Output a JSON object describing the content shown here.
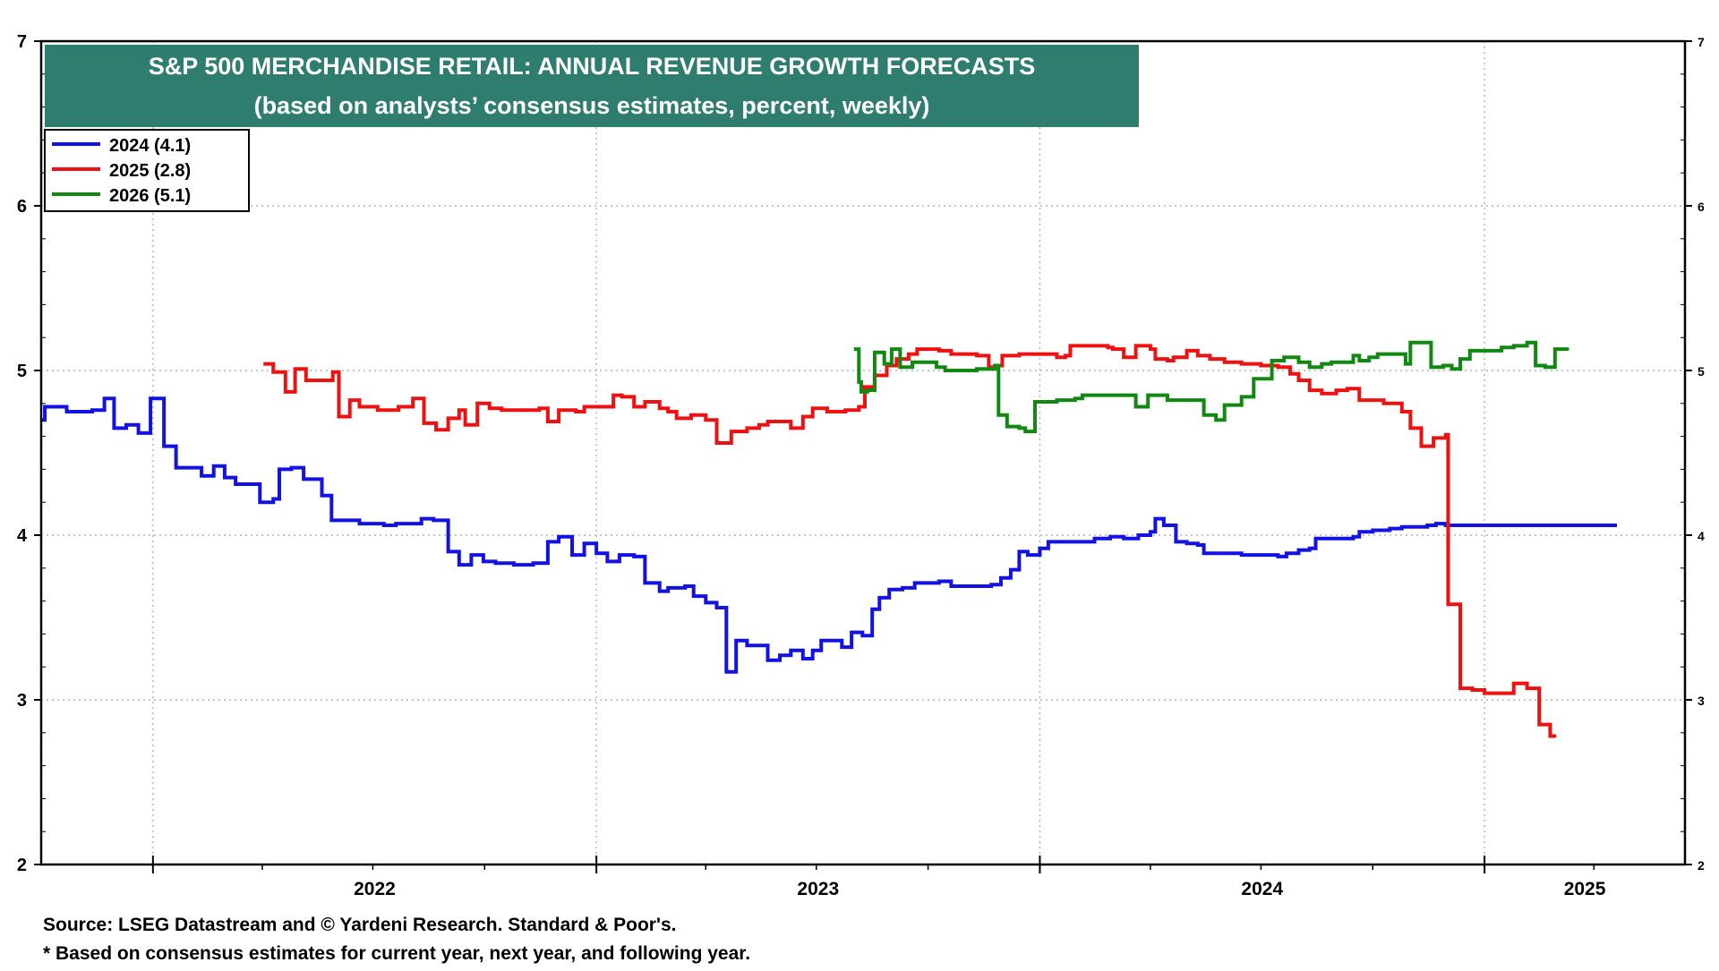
{
  "chart_data": {
    "type": "line",
    "title": "S&P 500 MERCHANDISE RETAIL: ANNUAL REVENUE GROWTH FORECASTS",
    "subtitle": "(based on analysts’ consensus estimates, percent, weekly)",
    "ylim": [
      2,
      7
    ],
    "yticks": [
      2,
      3,
      4,
      5,
      6,
      7
    ],
    "xlim": [
      "2021-10-01",
      "2025-06-15"
    ],
    "x_tick_labels": [
      "2022",
      "2023",
      "2024",
      "2025"
    ],
    "grid": true,
    "legend_position": "top-left",
    "colors": {
      "title_bg": "#2e7d6f",
      "s2024": "#1212e6",
      "s2025": "#ee1111",
      "s2026": "#118811"
    },
    "series": [
      {
        "name": "2024 (4.1)",
        "color": "#1212e6",
        "points": [
          [
            "2021-10-01",
            4.7
          ],
          [
            "2021-10-04",
            4.78
          ],
          [
            "2021-10-22",
            4.75
          ],
          [
            "2021-11-12",
            4.76
          ],
          [
            "2021-11-22",
            4.83
          ],
          [
            "2021-11-30",
            4.65
          ],
          [
            "2021-12-10",
            4.67
          ],
          [
            "2021-12-20",
            4.62
          ],
          [
            "2021-12-30",
            4.83
          ],
          [
            "2022-01-10",
            4.54
          ],
          [
            "2022-01-20",
            4.41
          ],
          [
            "2022-02-10",
            4.36
          ],
          [
            "2022-02-20",
            4.42
          ],
          [
            "2022-03-01",
            4.35
          ],
          [
            "2022-03-10",
            4.31
          ],
          [
            "2022-03-30",
            4.2
          ],
          [
            "2022-04-10",
            4.22
          ],
          [
            "2022-04-15",
            4.4
          ],
          [
            "2022-04-25",
            4.41
          ],
          [
            "2022-05-05",
            4.34
          ],
          [
            "2022-05-20",
            4.24
          ],
          [
            "2022-05-28",
            4.09
          ],
          [
            "2022-06-20",
            4.07
          ],
          [
            "2022-07-10",
            4.06
          ],
          [
            "2022-07-20",
            4.07
          ],
          [
            "2022-08-10",
            4.1
          ],
          [
            "2022-08-20",
            4.09
          ],
          [
            "2022-09-01",
            3.9
          ],
          [
            "2022-09-10",
            3.82
          ],
          [
            "2022-09-20",
            3.88
          ],
          [
            "2022-09-30",
            3.84
          ],
          [
            "2022-10-10",
            3.83
          ],
          [
            "2022-10-25",
            3.82
          ],
          [
            "2022-11-10",
            3.83
          ],
          [
            "2022-11-22",
            3.96
          ],
          [
            "2022-12-01",
            3.99
          ],
          [
            "2022-12-12",
            3.88
          ],
          [
            "2022-12-22",
            3.95
          ],
          [
            "2023-01-01",
            3.89
          ],
          [
            "2023-01-10",
            3.84
          ],
          [
            "2023-01-20",
            3.88
          ],
          [
            "2023-02-01",
            3.87
          ],
          [
            "2023-02-10",
            3.71
          ],
          [
            "2023-02-22",
            3.66
          ],
          [
            "2023-03-01",
            3.68
          ],
          [
            "2023-03-15",
            3.69
          ],
          [
            "2023-03-22",
            3.63
          ],
          [
            "2023-04-01",
            3.59
          ],
          [
            "2023-04-10",
            3.56
          ],
          [
            "2023-04-18",
            3.17
          ],
          [
            "2023-04-26",
            3.36
          ],
          [
            "2023-05-05",
            3.33
          ],
          [
            "2023-05-22",
            3.24
          ],
          [
            "2023-06-01",
            3.27
          ],
          [
            "2023-06-10",
            3.3
          ],
          [
            "2023-06-20",
            3.25
          ],
          [
            "2023-06-28",
            3.3
          ],
          [
            "2023-07-05",
            3.36
          ],
          [
            "2023-07-22",
            3.32
          ],
          [
            "2023-07-30",
            3.41
          ],
          [
            "2023-08-08",
            3.39
          ],
          [
            "2023-08-16",
            3.55
          ],
          [
            "2023-08-22",
            3.62
          ],
          [
            "2023-08-30",
            3.67
          ],
          [
            "2023-09-10",
            3.68
          ],
          [
            "2023-09-20",
            3.71
          ],
          [
            "2023-10-10",
            3.72
          ],
          [
            "2023-10-20",
            3.69
          ],
          [
            "2023-11-22",
            3.7
          ],
          [
            "2023-11-30",
            3.74
          ],
          [
            "2023-12-08",
            3.79
          ],
          [
            "2023-12-15",
            3.9
          ],
          [
            "2023-12-22",
            3.88
          ],
          [
            "2024-01-01",
            3.92
          ],
          [
            "2024-01-08",
            3.96
          ],
          [
            "2024-02-10",
            3.96
          ],
          [
            "2024-02-15",
            3.98
          ],
          [
            "2024-02-28",
            3.99
          ],
          [
            "2024-03-10",
            3.98
          ],
          [
            "2024-03-22",
            4.0
          ],
          [
            "2024-04-01",
            4.02
          ],
          [
            "2024-04-05",
            4.1
          ],
          [
            "2024-04-12",
            4.06
          ],
          [
            "2024-04-22",
            3.96
          ],
          [
            "2024-05-01",
            3.95
          ],
          [
            "2024-05-10",
            3.94
          ],
          [
            "2024-05-15",
            3.89
          ],
          [
            "2024-06-10",
            3.89
          ],
          [
            "2024-06-15",
            3.88
          ],
          [
            "2024-07-15",
            3.87
          ],
          [
            "2024-07-22",
            3.89
          ],
          [
            "2024-08-01",
            3.91
          ],
          [
            "2024-08-10",
            3.92
          ],
          [
            "2024-08-15",
            3.98
          ],
          [
            "2024-09-15",
            3.99
          ],
          [
            "2024-09-20",
            4.02
          ],
          [
            "2024-10-01",
            4.03
          ],
          [
            "2024-10-15",
            4.04
          ],
          [
            "2024-10-25",
            4.05
          ],
          [
            "2024-11-15",
            4.06
          ],
          [
            "2024-11-22",
            4.07
          ],
          [
            "2024-11-30",
            4.06
          ],
          [
            "2025-04-20",
            4.06
          ]
        ]
      },
      {
        "name": "2025 (2.8)",
        "color": "#ee1111",
        "points": [
          [
            "2022-04-02",
            5.04
          ],
          [
            "2022-04-10",
            4.99
          ],
          [
            "2022-04-20",
            4.87
          ],
          [
            "2022-04-28",
            5.01
          ],
          [
            "2022-05-07",
            4.94
          ],
          [
            "2022-05-29",
            4.99
          ],
          [
            "2022-06-03",
            4.72
          ],
          [
            "2022-06-12",
            4.82
          ],
          [
            "2022-06-20",
            4.78
          ],
          [
            "2022-07-05",
            4.76
          ],
          [
            "2022-07-22",
            4.78
          ],
          [
            "2022-08-03",
            4.83
          ],
          [
            "2022-08-12",
            4.68
          ],
          [
            "2022-08-22",
            4.64
          ],
          [
            "2022-09-01",
            4.71
          ],
          [
            "2022-09-10",
            4.76
          ],
          [
            "2022-09-15",
            4.67
          ],
          [
            "2022-09-25",
            4.8
          ],
          [
            "2022-10-05",
            4.77
          ],
          [
            "2022-10-15",
            4.76
          ],
          [
            "2022-11-15",
            4.77
          ],
          [
            "2022-11-22",
            4.69
          ],
          [
            "2022-12-01",
            4.76
          ],
          [
            "2022-12-15",
            4.75
          ],
          [
            "2022-12-22",
            4.78
          ],
          [
            "2023-01-15",
            4.85
          ],
          [
            "2023-01-22",
            4.84
          ],
          [
            "2023-02-01",
            4.78
          ],
          [
            "2023-02-10",
            4.81
          ],
          [
            "2023-02-22",
            4.77
          ],
          [
            "2023-03-01",
            4.75
          ],
          [
            "2023-03-08",
            4.71
          ],
          [
            "2023-03-20",
            4.73
          ],
          [
            "2023-04-01",
            4.7
          ],
          [
            "2023-04-10",
            4.56
          ],
          [
            "2023-04-22",
            4.63
          ],
          [
            "2023-05-05",
            4.65
          ],
          [
            "2023-05-15",
            4.67
          ],
          [
            "2023-05-22",
            4.69
          ],
          [
            "2023-06-10",
            4.65
          ],
          [
            "2023-06-20",
            4.72
          ],
          [
            "2023-06-28",
            4.77
          ],
          [
            "2023-07-10",
            4.75
          ],
          [
            "2023-07-25",
            4.76
          ],
          [
            "2023-08-05",
            4.78
          ],
          [
            "2023-08-10",
            4.9
          ],
          [
            "2023-08-18",
            4.97
          ],
          [
            "2023-08-28",
            5.03
          ],
          [
            "2023-09-05",
            5.07
          ],
          [
            "2023-09-15",
            5.1
          ],
          [
            "2023-09-22",
            5.13
          ],
          [
            "2023-10-10",
            5.12
          ],
          [
            "2023-10-20",
            5.1
          ],
          [
            "2023-11-10",
            5.09
          ],
          [
            "2023-11-20",
            5.02
          ],
          [
            "2023-11-25",
            5.03
          ],
          [
            "2023-12-01",
            5.09
          ],
          [
            "2023-12-15",
            5.1
          ],
          [
            "2024-01-15",
            5.08
          ],
          [
            "2024-01-22",
            5.09
          ],
          [
            "2024-01-26",
            5.15
          ],
          [
            "2024-02-26",
            5.14
          ],
          [
            "2024-03-01",
            5.13
          ],
          [
            "2024-03-10",
            5.08
          ],
          [
            "2024-03-20",
            5.15
          ],
          [
            "2024-04-01",
            5.13
          ],
          [
            "2024-04-05",
            5.07
          ],
          [
            "2024-04-15",
            5.06
          ],
          [
            "2024-04-20",
            5.08
          ],
          [
            "2024-05-01",
            5.12
          ],
          [
            "2024-05-10",
            5.09
          ],
          [
            "2024-05-20",
            5.07
          ],
          [
            "2024-06-01",
            5.05
          ],
          [
            "2024-06-15",
            5.04
          ],
          [
            "2024-07-01",
            5.03
          ],
          [
            "2024-07-15",
            5.02
          ],
          [
            "2024-07-25",
            4.98
          ],
          [
            "2024-08-01",
            4.94
          ],
          [
            "2024-08-10",
            4.88
          ],
          [
            "2024-08-20",
            4.86
          ],
          [
            "2024-09-01",
            4.88
          ],
          [
            "2024-09-10",
            4.89
          ],
          [
            "2024-09-20",
            4.82
          ],
          [
            "2024-10-10",
            4.8
          ],
          [
            "2024-10-25",
            4.75
          ],
          [
            "2024-11-01",
            4.65
          ],
          [
            "2024-11-10",
            4.54
          ],
          [
            "2024-11-20",
            4.59
          ],
          [
            "2024-11-30",
            4.61
          ],
          [
            "2024-12-02",
            3.58
          ],
          [
            "2024-12-12",
            3.07
          ],
          [
            "2024-12-22",
            3.06
          ],
          [
            "2025-01-01",
            3.04
          ],
          [
            "2025-01-25",
            3.1
          ],
          [
            "2025-02-05",
            3.07
          ],
          [
            "2025-02-15",
            2.85
          ],
          [
            "2025-02-24",
            2.78
          ],
          [
            "2025-03-01",
            2.78
          ]
        ]
      },
      {
        "name": "2026 (5.1)",
        "color": "#118811",
        "points": [
          [
            "2023-08-01",
            5.13
          ],
          [
            "2023-08-05",
            4.93
          ],
          [
            "2023-08-07",
            4.87
          ],
          [
            "2023-08-12",
            4.88
          ],
          [
            "2023-08-18",
            5.11
          ],
          [
            "2023-08-26",
            5.04
          ],
          [
            "2023-09-01",
            5.13
          ],
          [
            "2023-09-08",
            5.02
          ],
          [
            "2023-09-18",
            5.05
          ],
          [
            "2023-10-08",
            5.02
          ],
          [
            "2023-10-15",
            5.0
          ],
          [
            "2023-11-10",
            5.01
          ],
          [
            "2023-11-25",
            5.03
          ],
          [
            "2023-11-28",
            4.73
          ],
          [
            "2023-12-05",
            4.66
          ],
          [
            "2023-12-15",
            4.65
          ],
          [
            "2023-12-20",
            4.63
          ],
          [
            "2023-12-28",
            4.81
          ],
          [
            "2024-01-15",
            4.82
          ],
          [
            "2024-01-30",
            4.83
          ],
          [
            "2024-02-05",
            4.85
          ],
          [
            "2024-03-10",
            4.85
          ],
          [
            "2024-03-20",
            4.78
          ],
          [
            "2024-03-30",
            4.85
          ],
          [
            "2024-04-15",
            4.82
          ],
          [
            "2024-05-15",
            4.73
          ],
          [
            "2024-05-25",
            4.7
          ],
          [
            "2024-06-01",
            4.79
          ],
          [
            "2024-06-15",
            4.84
          ],
          [
            "2024-06-25",
            4.95
          ],
          [
            "2024-07-05",
            4.95
          ],
          [
            "2024-07-10",
            5.06
          ],
          [
            "2024-07-20",
            5.08
          ],
          [
            "2024-08-01",
            5.05
          ],
          [
            "2024-08-10",
            5.02
          ],
          [
            "2024-08-20",
            5.04
          ],
          [
            "2024-08-28",
            5.05
          ],
          [
            "2024-09-08",
            5.05
          ],
          [
            "2024-09-15",
            5.09
          ],
          [
            "2024-09-20",
            5.06
          ],
          [
            "2024-09-28",
            5.08
          ],
          [
            "2024-10-05",
            5.1
          ],
          [
            "2024-10-20",
            5.1
          ],
          [
            "2024-10-28",
            5.04
          ],
          [
            "2024-11-01",
            5.17
          ],
          [
            "2024-11-10",
            5.17
          ],
          [
            "2024-11-18",
            5.02
          ],
          [
            "2024-11-28",
            5.03
          ],
          [
            "2024-12-05",
            5.01
          ],
          [
            "2024-12-12",
            5.07
          ],
          [
            "2024-12-20",
            5.12
          ],
          [
            "2025-01-01",
            5.12
          ],
          [
            "2025-01-15",
            5.14
          ],
          [
            "2025-01-25",
            5.15
          ],
          [
            "2025-02-05",
            5.17
          ],
          [
            "2025-02-12",
            5.03
          ],
          [
            "2025-02-20",
            5.02
          ],
          [
            "2025-02-28",
            5.13
          ],
          [
            "2025-03-10",
            5.12
          ]
        ]
      }
    ]
  },
  "source_note": "Source: LSEG Datastream and © Yardeni Research. Standard & Poor's.",
  "footnote": "* Based on consensus estimates for current year, next year, and following year."
}
